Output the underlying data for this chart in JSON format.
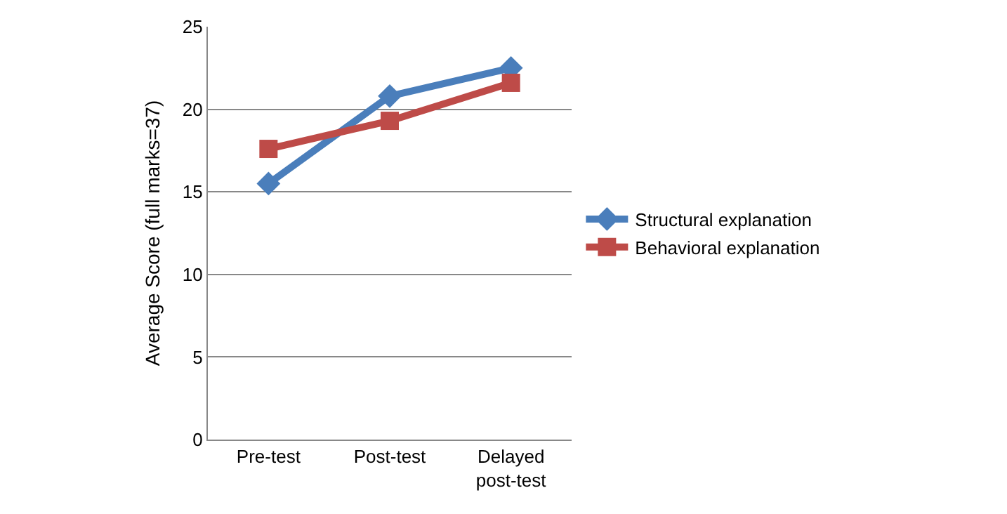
{
  "chart_data": {
    "type": "line",
    "ylabel": "Average Score (full marks=37)",
    "categories": [
      "Pre-test",
      "Post-test",
      "Delayed\npost-test"
    ],
    "series": [
      {
        "name": "Structural explanation",
        "color": "#4a7ebb",
        "values": [
          15.5,
          20.8,
          22.5
        ],
        "marker": "diamond"
      },
      {
        "name": "Behavioral explanation",
        "color": "#be4b48",
        "values": [
          17.6,
          19.3,
          21.6
        ],
        "marker": "square"
      }
    ],
    "ylim": [
      0,
      25
    ],
    "yticks": [
      0,
      5,
      10,
      15,
      20,
      25
    ],
    "grid": "y",
    "legend": "right",
    "line_style": "solid"
  }
}
